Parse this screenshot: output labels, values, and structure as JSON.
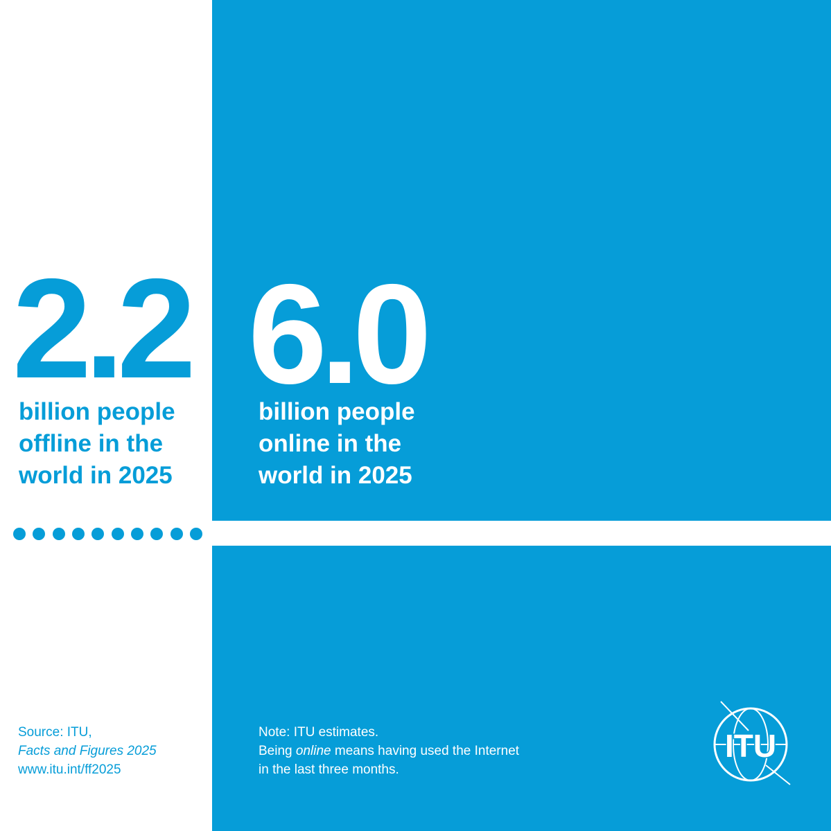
{
  "offline": {
    "figure": "2.2",
    "lines": [
      "billion people",
      "offline in the",
      "world in 2025"
    ]
  },
  "online": {
    "figure": "6.0",
    "lines": [
      "billion people",
      "online in the",
      "world in 2025"
    ]
  },
  "source": {
    "lines": [
      "Source: ITU,",
      "Facts and Figures 2025",
      "www.itu.int/ff2025"
    ]
  },
  "note": {
    "line1": "Note: ITU estimates.",
    "line2": [
      "Being ",
      "online",
      " means having used the Internet"
    ],
    "line3": "in the last three months."
  },
  "logo": {
    "text": "ITU"
  }
}
